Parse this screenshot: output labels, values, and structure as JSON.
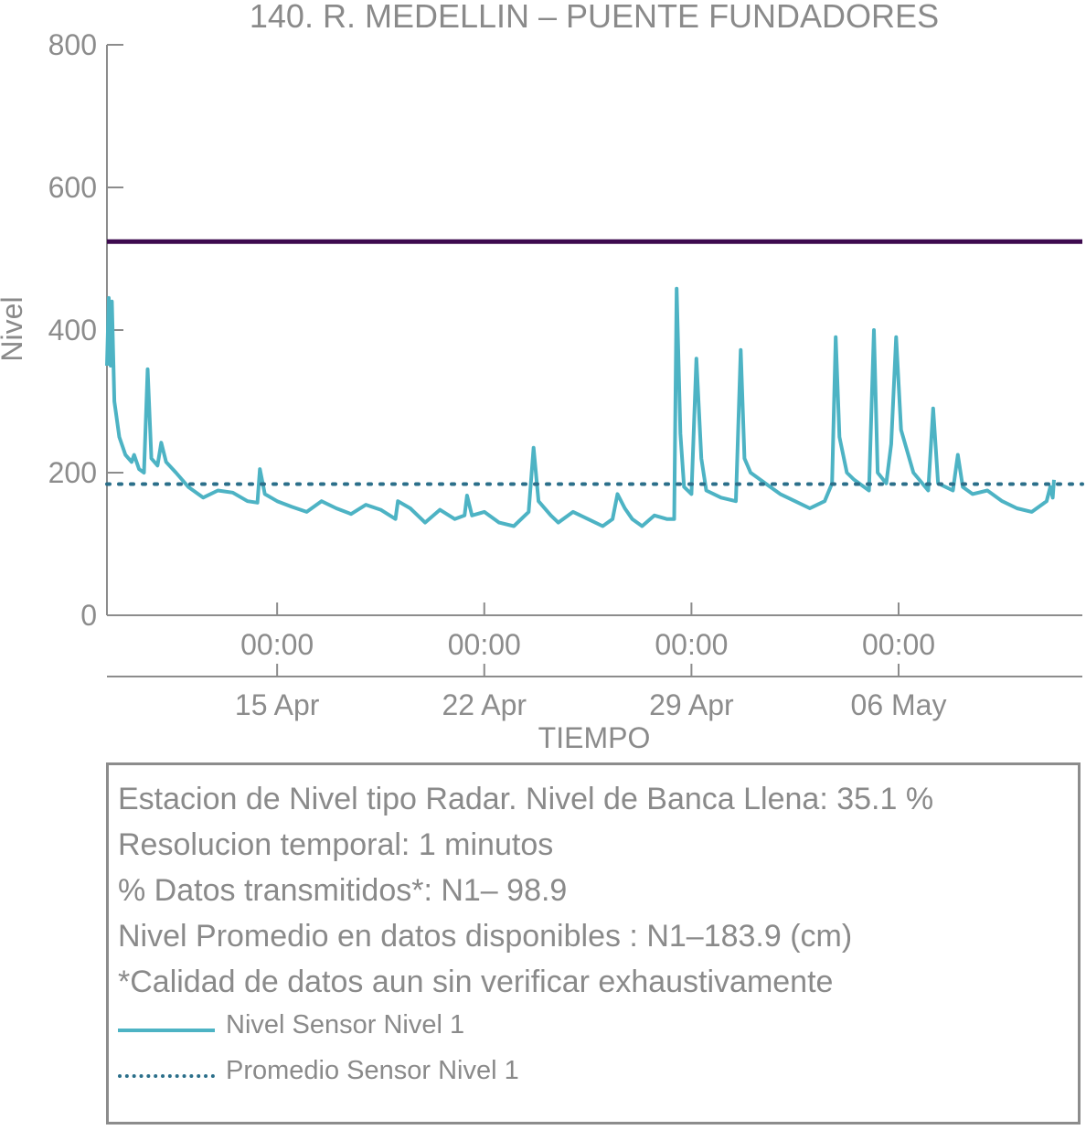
{
  "chart_data": {
    "type": "line",
    "title": "140. R. MEDELLIN – PUENTE FUNDADORES",
    "xlabel": "TIEMPO",
    "ylabel": "Nivel",
    "ylim": [
      0,
      800
    ],
    "yticks": [
      0,
      200,
      400,
      600,
      800
    ],
    "x_range": [
      "2021-04-09 06:00",
      "2021-05-12 05:00"
    ],
    "x_ticks_time": [
      {
        "date": "2021-04-15",
        "label": "00:00"
      },
      {
        "date": "2021-04-22",
        "label": "00:00"
      },
      {
        "date": "2021-04-29",
        "label": "00:00"
      },
      {
        "date": "2021-05-06",
        "label": "00:00"
      }
    ],
    "x_ticks_date": [
      {
        "date": "2021-04-15",
        "label": "15 Apr"
      },
      {
        "date": "2021-04-22",
        "label": "22 Apr"
      },
      {
        "date": "2021-04-29",
        "label": "29 Apr"
      },
      {
        "date": "2021-05-06",
        "label": "06 May"
      }
    ],
    "reference_lines": [
      {
        "y": 524,
        "color": "#3d0a4f"
      }
    ],
    "series": [
      {
        "name": "Nivel Sensor Nivel 1",
        "color": "#4db3c4",
        "style": "solid",
        "points": [
          [
            "2021-04-09 06:00",
            350
          ],
          [
            "2021-04-09 07:30",
            445
          ],
          [
            "2021-04-09 09:00",
            350
          ],
          [
            "2021-04-09 10:00",
            440
          ],
          [
            "2021-04-09 12:00",
            300
          ],
          [
            "2021-04-09 16:00",
            250
          ],
          [
            "2021-04-09 21:00",
            225
          ],
          [
            "2021-04-10 02:00",
            215
          ],
          [
            "2021-04-10 04:00",
            225
          ],
          [
            "2021-04-10 08:00",
            205
          ],
          [
            "2021-04-10 12:00",
            200
          ],
          [
            "2021-04-10 15:00",
            345
          ],
          [
            "2021-04-10 18:00",
            220
          ],
          [
            "2021-04-10 23:00",
            210
          ],
          [
            "2021-04-11 02:00",
            242
          ],
          [
            "2021-04-11 06:00",
            215
          ],
          [
            "2021-04-11 14:00",
            200
          ],
          [
            "2021-04-12 00:00",
            180
          ],
          [
            "2021-04-12 12:00",
            165
          ],
          [
            "2021-04-13 00:00",
            175
          ],
          [
            "2021-04-13 12:00",
            172
          ],
          [
            "2021-04-14 00:00",
            160
          ],
          [
            "2021-04-14 08:00",
            158
          ],
          [
            "2021-04-14 10:00",
            205
          ],
          [
            "2021-04-14 14:00",
            170
          ],
          [
            "2021-04-15 00:00",
            160
          ],
          [
            "2021-04-15 12:00",
            152
          ],
          [
            "2021-04-16 00:00",
            145
          ],
          [
            "2021-04-16 12:00",
            160
          ],
          [
            "2021-04-17 00:00",
            150
          ],
          [
            "2021-04-17 12:00",
            142
          ],
          [
            "2021-04-18 00:00",
            155
          ],
          [
            "2021-04-18 12:00",
            148
          ],
          [
            "2021-04-19 00:00",
            135
          ],
          [
            "2021-04-19 02:00",
            160
          ],
          [
            "2021-04-19 12:00",
            150
          ],
          [
            "2021-04-20 00:00",
            130
          ],
          [
            "2021-04-20 12:00",
            148
          ],
          [
            "2021-04-21 00:00",
            135
          ],
          [
            "2021-04-21 08:00",
            140
          ],
          [
            "2021-04-21 10:00",
            168
          ],
          [
            "2021-04-21 14:00",
            140
          ],
          [
            "2021-04-22 00:00",
            145
          ],
          [
            "2021-04-22 12:00",
            130
          ],
          [
            "2021-04-23 00:00",
            125
          ],
          [
            "2021-04-23 12:00",
            145
          ],
          [
            "2021-04-23 16:00",
            235
          ],
          [
            "2021-04-23 20:00",
            160
          ],
          [
            "2021-04-24 06:00",
            140
          ],
          [
            "2021-04-24 12:00",
            130
          ],
          [
            "2021-04-25 00:00",
            145
          ],
          [
            "2021-04-25 12:00",
            135
          ],
          [
            "2021-04-26 00:00",
            125
          ],
          [
            "2021-04-26 08:00",
            135
          ],
          [
            "2021-04-26 12:00",
            170
          ],
          [
            "2021-04-26 18:00",
            150
          ],
          [
            "2021-04-27 00:00",
            135
          ],
          [
            "2021-04-27 08:00",
            125
          ],
          [
            "2021-04-27 18:00",
            140
          ],
          [
            "2021-04-28 04:00",
            135
          ],
          [
            "2021-04-28 10:00",
            135
          ],
          [
            "2021-04-28 12:00",
            458
          ],
          [
            "2021-04-28 15:00",
            255
          ],
          [
            "2021-04-28 18:00",
            180
          ],
          [
            "2021-04-29 00:00",
            170
          ],
          [
            "2021-04-29 04:00",
            360
          ],
          [
            "2021-04-29 08:00",
            220
          ],
          [
            "2021-04-29 12:00",
            175
          ],
          [
            "2021-04-30 00:00",
            165
          ],
          [
            "2021-04-30 12:00",
            160
          ],
          [
            "2021-04-30 16:00",
            372
          ],
          [
            "2021-04-30 19:00",
            220
          ],
          [
            "2021-05-01 00:00",
            200
          ],
          [
            "2021-05-01 12:00",
            185
          ],
          [
            "2021-05-02 00:00",
            170
          ],
          [
            "2021-05-02 12:00",
            160
          ],
          [
            "2021-05-03 00:00",
            150
          ],
          [
            "2021-05-03 12:00",
            160
          ],
          [
            "2021-05-03 18:00",
            185
          ],
          [
            "2021-05-03 21:00",
            390
          ],
          [
            "2021-05-04 00:00",
            250
          ],
          [
            "2021-05-04 06:00",
            200
          ],
          [
            "2021-05-04 12:00",
            190
          ],
          [
            "2021-05-05 00:00",
            175
          ],
          [
            "2021-05-05 04:00",
            400
          ],
          [
            "2021-05-05 07:00",
            200
          ],
          [
            "2021-05-05 14:00",
            185
          ],
          [
            "2021-05-05 18:00",
            240
          ],
          [
            "2021-05-05 22:00",
            390
          ],
          [
            "2021-05-06 02:00",
            260
          ],
          [
            "2021-05-06 12:00",
            200
          ],
          [
            "2021-05-07 00:00",
            175
          ],
          [
            "2021-05-07 04:00",
            290
          ],
          [
            "2021-05-07 08:00",
            185
          ],
          [
            "2021-05-07 20:00",
            175
          ],
          [
            "2021-05-08 00:00",
            225
          ],
          [
            "2021-05-08 04:00",
            180
          ],
          [
            "2021-05-08 12:00",
            170
          ],
          [
            "2021-05-09 00:00",
            175
          ],
          [
            "2021-05-09 12:00",
            160
          ],
          [
            "2021-05-10 00:00",
            150
          ],
          [
            "2021-05-10 12:00",
            145
          ],
          [
            "2021-05-11 00:00",
            160
          ],
          [
            "2021-05-11 03:00",
            180
          ],
          [
            "2021-05-11 05:00",
            165
          ],
          [
            "2021-05-11 06:00",
            190
          ]
        ]
      },
      {
        "name": "Promedio Sensor Nivel 1",
        "color": "#2b6f8a",
        "style": "dotted",
        "constant": 183.9
      }
    ],
    "legend_placement": "bottom"
  },
  "info": {
    "line1": "Estacion de Nivel tipo Radar. Nivel de Banca Llena: 35.1 %",
    "line2": "Resolucion temporal: 1 minutos",
    "line3": "% Datos transmitidos*: N1– 98.9",
    "line4": "Nivel Promedio en datos disponibles : N1–183.9 (cm)",
    "line5": "*Calidad de datos aun sin verificar exhaustivamente"
  },
  "legend": {
    "item1": "Nivel Sensor Nivel 1",
    "item2": "Promedio Sensor Nivel 1"
  }
}
